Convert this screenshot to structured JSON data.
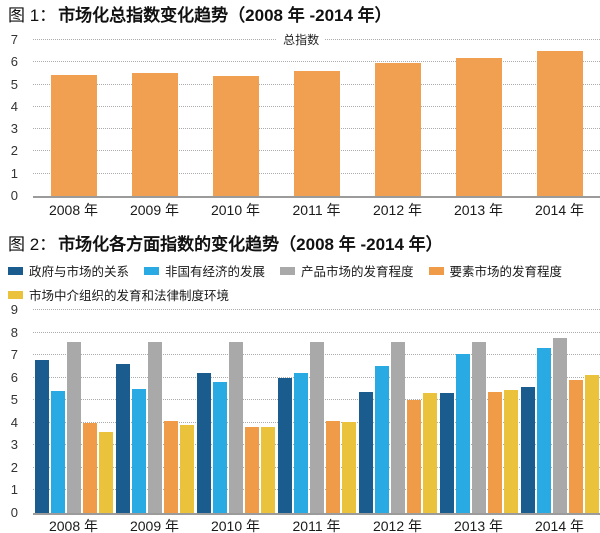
{
  "fig1": {
    "label": "图 1：",
    "title": "市场化总指数变化趋势（2008 年 -2014 年）"
  },
  "fig2": {
    "label": "图 2：",
    "title": "市场化各方面指数的变化趋势（2008 年 -2014 年）"
  },
  "colors": {
    "chart1_bar": "#F0A050",
    "gov_blue": "#1A5C8D",
    "nonstate_lightblue": "#2AAAE2",
    "product_gray": "#A9A9A9",
    "factor_orange": "#F09B48",
    "intermediary_yellow": "#EBC23C",
    "gridline": "#ABABAB",
    "axis": "#9B9B9B"
  },
  "chart_data": [
    {
      "type": "bar",
      "title": "市场化总指数变化趋势（2008 年 -2014 年）",
      "series_label": "总指数",
      "categories": [
        "2008 年",
        "2009 年",
        "2010 年",
        "2011 年",
        "2012 年",
        "2013 年",
        "2014 年"
      ],
      "values": [
        5.45,
        5.5,
        5.4,
        5.6,
        5.95,
        6.2,
        6.5
      ],
      "bar_color": "#F0A050",
      "xlabel": "",
      "ylabel": "",
      "ylim": [
        0,
        7
      ],
      "yticks": [
        0,
        1,
        2,
        3,
        4,
        5,
        6,
        7
      ],
      "grid": "horizontal-dotted",
      "legend_position": "none"
    },
    {
      "type": "bar",
      "title": "市场化各方面指数的变化趋势（2008 年 -2014 年）",
      "categories": [
        "2008 年",
        "2009 年",
        "2010 年",
        "2011 年",
        "2012 年",
        "2013 年",
        "2014 年"
      ],
      "series": [
        {
          "name": "政府与市场的关系",
          "color": "#1A5C8D",
          "values": [
            6.8,
            6.6,
            6.2,
            6.0,
            5.35,
            5.3,
            5.6
          ]
        },
        {
          "name": "非国有经济的发展",
          "color": "#2AAAE2",
          "values": [
            5.4,
            5.5,
            5.8,
            6.2,
            6.5,
            7.05,
            7.3
          ]
        },
        {
          "name": "产品市场的发育程度",
          "color": "#A9A9A9",
          "values": [
            7.6,
            7.6,
            7.6,
            7.6,
            7.6,
            7.6,
            7.75
          ]
        },
        {
          "name": "要素市场的发育程度",
          "color": "#F09B48",
          "values": [
            4.0,
            4.1,
            3.8,
            4.1,
            5.0,
            5.35,
            5.9
          ]
        },
        {
          "name": "市场中介组织的发育和法律制度环境",
          "color": "#EBC23C",
          "values": [
            3.6,
            3.9,
            3.8,
            4.05,
            5.3,
            5.45,
            6.1
          ]
        }
      ],
      "xlabel": "",
      "ylabel": "",
      "ylim": [
        0,
        9
      ],
      "yticks": [
        0,
        1,
        2,
        3,
        4,
        5,
        6,
        7,
        8,
        9
      ],
      "grid": "horizontal-dotted",
      "legend_position": "top",
      "legend_rows": [
        4,
        1
      ]
    }
  ]
}
